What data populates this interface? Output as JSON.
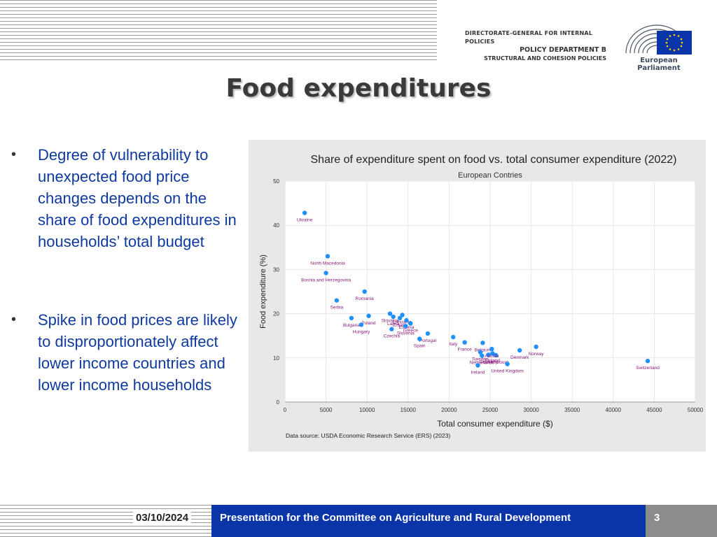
{
  "header": {
    "line1": "DIRECTORATE-GENERAL FOR INTERNAL POLICIES",
    "line2": "POLICY DEPARTMENT B",
    "line3": "STRUCTURAL AND COHESION POLICIES",
    "logo_label": "European Parliament"
  },
  "slide": {
    "title": "Food expenditures",
    "bullets": [
      "Degree of vulnerability to unexpected food price changes depends on the share of food expenditures in households’ total budget",
      "Spike in food prices are likely to disproportionately affect lower income countries and lower income households"
    ],
    "bullet_marker": "•"
  },
  "footer": {
    "date": "03/10/2024",
    "text": "Presentation for the Committee on Agriculture and Rural Development",
    "page": "3"
  },
  "colors": {
    "point": "#1e90ff",
    "label": "#8b1a7a",
    "footer_bar": "#0a35a8"
  },
  "chart_data": {
    "type": "scatter",
    "title": "Share of expenditure spent on food vs. total consumer expenditure (2022)",
    "subtitle": "European Contries",
    "xlabel": "Total consumer expenditure ($)",
    "ylabel": "Food expenditure (%)",
    "xlim": [
      0,
      50000
    ],
    "ylim": [
      0,
      50
    ],
    "xticks": [
      0,
      5000,
      10000,
      15000,
      20000,
      25000,
      30000,
      35000,
      40000,
      45000,
      50000
    ],
    "yticks": [
      0,
      10,
      20,
      30,
      40,
      50
    ],
    "grid": true,
    "source": "Data source: USDA Economic Research Service (ERS) (2023)",
    "points": [
      {
        "label": "Ukraine",
        "x": 2400,
        "y": 42.8
      },
      {
        "label": "North Macedonia",
        "x": 5200,
        "y": 33.0
      },
      {
        "label": "Bosnia and Herzegovina",
        "x": 5000,
        "y": 29.2
      },
      {
        "label": "Romania",
        "x": 9700,
        "y": 25.0
      },
      {
        "label": "Serbia",
        "x": 6300,
        "y": 23.0
      },
      {
        "label": "Bulgaria",
        "x": 8100,
        "y": 19.0
      },
      {
        "label": "Poland",
        "x": 10200,
        "y": 19.5
      },
      {
        "label": "Hungary",
        "x": 9300,
        "y": 17.5
      },
      {
        "label": "Slovakia",
        "x": 12800,
        "y": 20.0
      },
      {
        "label": "Latvia",
        "x": 13200,
        "y": 19.3
      },
      {
        "label": "Lithuania",
        "x": 14300,
        "y": 19.7
      },
      {
        "label": "Estonia",
        "x": 14800,
        "y": 18.5
      },
      {
        "label": "Croatia",
        "x": 14000,
        "y": 19.0
      },
      {
        "label": "Greece",
        "x": 15300,
        "y": 17.8
      },
      {
        "label": "Czechia",
        "x": 13000,
        "y": 16.5
      },
      {
        "label": "Portugal",
        "x": 17400,
        "y": 15.5
      },
      {
        "label": "Spain",
        "x": 16400,
        "y": 14.3
      },
      {
        "label": "Slovenia",
        "x": 14700,
        "y": 17.2
      },
      {
        "label": "Italy",
        "x": 20500,
        "y": 14.7
      },
      {
        "label": "France",
        "x": 21900,
        "y": 13.5
      },
      {
        "label": "Belgium",
        "x": 24100,
        "y": 13.4
      },
      {
        "label": "Sweden",
        "x": 23800,
        "y": 11.3
      },
      {
        "label": "Netherlands",
        "x": 24000,
        "y": 10.5
      },
      {
        "label": "Germany",
        "x": 24800,
        "y": 10.7
      },
      {
        "label": "Finland",
        "x": 25300,
        "y": 11.0
      },
      {
        "label": "Luxembourg",
        "x": 25700,
        "y": 10.6
      },
      {
        "label": "Austria",
        "x": 25200,
        "y": 12.0
      },
      {
        "label": "Ireland",
        "x": 23500,
        "y": 8.3
      },
      {
        "label": "United Kingdom",
        "x": 27100,
        "y": 8.6
      },
      {
        "label": "Denmark",
        "x": 28600,
        "y": 11.7
      },
      {
        "label": "Norway",
        "x": 30600,
        "y": 12.5
      },
      {
        "label": "Switzerland",
        "x": 44200,
        "y": 9.3
      }
    ]
  }
}
